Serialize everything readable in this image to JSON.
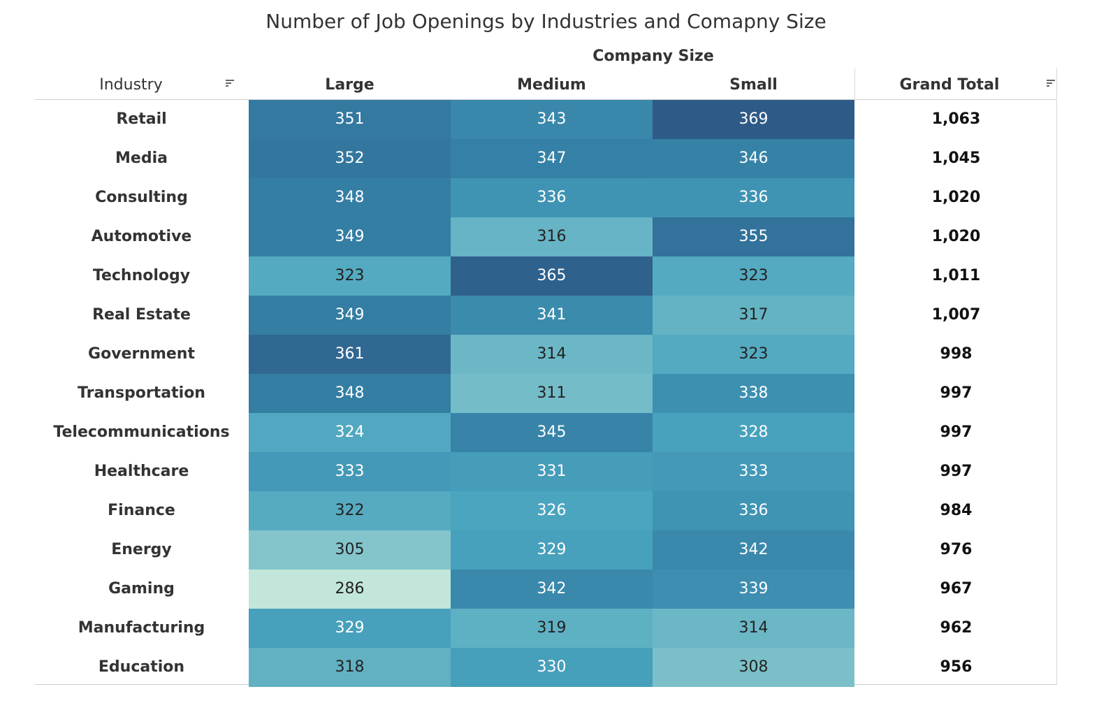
{
  "chart_data": {
    "type": "heatmap",
    "title": "Number of Job Openings by Industries and Comapny Size",
    "column_group_label": "Company Size",
    "row_header": "Industry",
    "columns": [
      "Large",
      "Medium",
      "Small"
    ],
    "total_header": "Grand Total",
    "color_range": {
      "low": "#c2e6da",
      "high": "#2e5a87",
      "min": 286,
      "max": 369
    },
    "rows": [
      {
        "industry": "Retail",
        "values": [
          351,
          343,
          369
        ],
        "total": "1,063"
      },
      {
        "industry": "Media",
        "values": [
          352,
          347,
          346
        ],
        "total": "1,045"
      },
      {
        "industry": "Consulting",
        "values": [
          348,
          336,
          336
        ],
        "total": "1,020"
      },
      {
        "industry": "Automotive",
        "values": [
          349,
          316,
          355
        ],
        "total": "1,020"
      },
      {
        "industry": "Technology",
        "values": [
          323,
          365,
          323
        ],
        "total": "1,011"
      },
      {
        "industry": "Real Estate",
        "values": [
          349,
          341,
          317
        ],
        "total": "1,007"
      },
      {
        "industry": "Government",
        "values": [
          361,
          314,
          323
        ],
        "total": "998"
      },
      {
        "industry": "Transportation",
        "values": [
          348,
          311,
          338
        ],
        "total": "997"
      },
      {
        "industry": "Telecommunications",
        "values": [
          324,
          345,
          328
        ],
        "total": "997"
      },
      {
        "industry": "Healthcare",
        "values": [
          333,
          331,
          333
        ],
        "total": "997"
      },
      {
        "industry": "Finance",
        "values": [
          322,
          326,
          336
        ],
        "total": "984"
      },
      {
        "industry": "Energy",
        "values": [
          305,
          329,
          342
        ],
        "total": "976"
      },
      {
        "industry": "Gaming",
        "values": [
          286,
          342,
          339
        ],
        "total": "967"
      },
      {
        "industry": "Manufacturing",
        "values": [
          329,
          319,
          314
        ],
        "total": "962"
      },
      {
        "industry": "Education",
        "values": [
          318,
          330,
          308
        ],
        "total": "956"
      }
    ]
  },
  "icons": {
    "sort": "sort-descending-icon"
  }
}
